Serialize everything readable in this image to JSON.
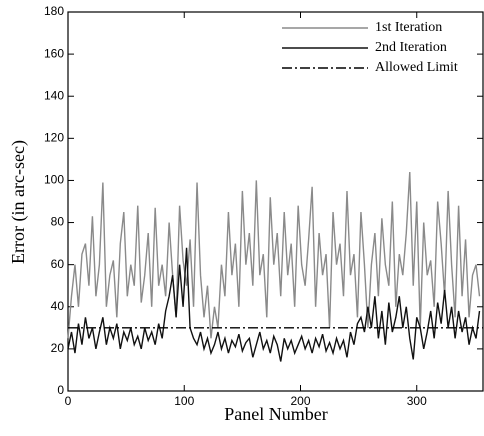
{
  "chart_data": {
    "type": "line",
    "xlabel": "Panel Number",
    "ylabel": "Error (in arc-sec)",
    "xlim": [
      0,
      357
    ],
    "ylim": [
      0,
      180
    ],
    "xticks": [
      0,
      100,
      200,
      300
    ],
    "yticks": [
      0,
      20,
      40,
      60,
      80,
      100,
      120,
      140,
      160,
      180
    ],
    "legend": "upper right",
    "x": [
      0,
      3,
      6,
      9,
      12,
      15,
      18,
      21,
      24,
      27,
      30,
      33,
      36,
      39,
      42,
      45,
      48,
      51,
      54,
      57,
      60,
      63,
      66,
      69,
      72,
      75,
      78,
      81,
      84,
      87,
      90,
      93,
      96,
      99,
      102,
      105,
      108,
      111,
      114,
      117,
      120,
      123,
      126,
      129,
      132,
      135,
      138,
      141,
      144,
      147,
      150,
      153,
      156,
      159,
      162,
      165,
      168,
      171,
      174,
      177,
      180,
      183,
      186,
      189,
      192,
      195,
      198,
      201,
      204,
      207,
      210,
      213,
      216,
      219,
      222,
      225,
      228,
      231,
      234,
      237,
      240,
      243,
      246,
      249,
      252,
      255,
      258,
      261,
      264,
      267,
      270,
      273,
      276,
      279,
      282,
      285,
      288,
      291,
      294,
      297,
      300,
      303,
      306,
      309,
      312,
      315,
      318,
      321,
      324,
      327,
      330,
      333,
      336,
      339,
      342,
      345,
      348,
      351,
      354
    ],
    "series": [
      {
        "name": "1st Iteration",
        "color": "#8a8a8a",
        "dash": "solid",
        "values": [
          25,
          45,
          60,
          40,
          65,
          70,
          50,
          83,
          45,
          60,
          99,
          40,
          55,
          62,
          35,
          70,
          85,
          45,
          60,
          50,
          88,
          42,
          55,
          75,
          40,
          87,
          50,
          60,
          45,
          80,
          55,
          35,
          88,
          62,
          50,
          72,
          40,
          99,
          55,
          35,
          50,
          25,
          40,
          30,
          60,
          45,
          85,
          55,
          70,
          40,
          95,
          60,
          75,
          50,
          100,
          55,
          65,
          35,
          92,
          60,
          75,
          45,
          85,
          55,
          70,
          40,
          88,
          60,
          50,
          72,
          97,
          40,
          75,
          55,
          65,
          30,
          85,
          60,
          70,
          45,
          95,
          55,
          65,
          35,
          85,
          60,
          30,
          60,
          75,
          45,
          82,
          60,
          50,
          90,
          40,
          65,
          55,
          75,
          104,
          50,
          90,
          30,
          80,
          55,
          62,
          40,
          90,
          70,
          45,
          95,
          60,
          35,
          88,
          45,
          72,
          35,
          55,
          60,
          45
        ]
      },
      {
        "name": "2nd Iteration",
        "color": "#111111",
        "dash": "solid",
        "values": [
          20,
          28,
          18,
          32,
          22,
          35,
          25,
          30,
          20,
          28,
          35,
          22,
          30,
          25,
          32,
          20,
          28,
          24,
          30,
          22,
          26,
          20,
          30,
          24,
          28,
          22,
          32,
          25,
          38,
          45,
          55,
          35,
          60,
          40,
          68,
          30,
          25,
          22,
          28,
          20,
          25,
          18,
          22,
          28,
          20,
          25,
          18,
          24,
          21,
          27,
          19,
          23,
          25,
          16,
          22,
          28,
          20,
          24,
          18,
          26,
          22,
          14,
          25,
          20,
          24,
          18,
          22,
          26,
          20,
          24,
          18,
          25,
          21,
          27,
          19,
          23,
          18,
          25,
          20,
          24,
          16,
          28,
          22,
          32,
          35,
          28,
          40,
          30,
          45,
          25,
          38,
          22,
          42,
          28,
          35,
          45,
          30,
          40,
          25,
          15,
          35,
          30,
          20,
          28,
          38,
          25,
          42,
          32,
          48,
          30,
          40,
          25,
          38,
          28,
          35,
          22,
          30,
          25,
          38
        ]
      },
      {
        "name": "Allowed Limit",
        "color": "#000000",
        "dash": "dashdot",
        "x": [
          0,
          357
        ],
        "values": [
          30,
          30
        ]
      }
    ]
  }
}
